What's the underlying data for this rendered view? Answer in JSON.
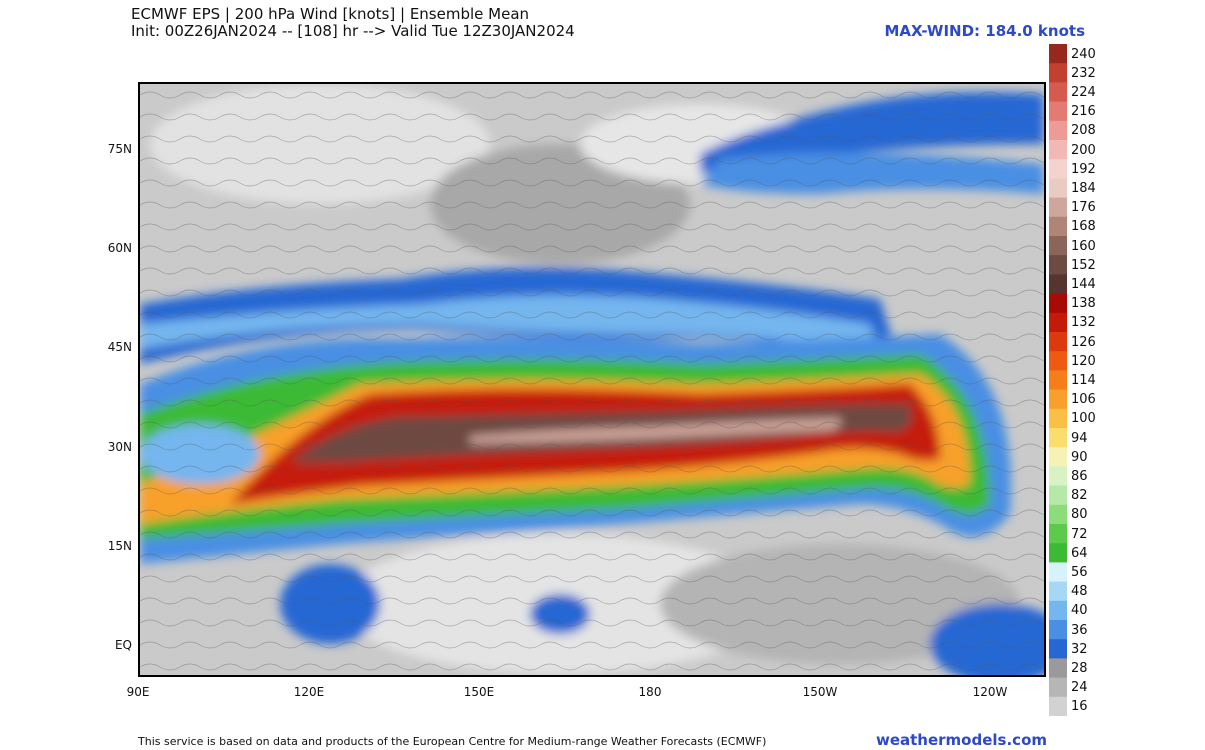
{
  "header": {
    "line1": "ECMWF EPS | 200 hPa Wind [knots] | Ensemble Mean",
    "line2": "Init: 00Z26JAN2024 -- [108] hr --> Valid Tue 12Z30JAN2024",
    "max_wind": "MAX-WIND: 184.0 knots"
  },
  "map": {
    "lat_labels": [
      "75N",
      "60N",
      "45N",
      "30N",
      "15N",
      "EQ"
    ],
    "lon_labels": [
      "90E",
      "120E",
      "150E",
      "180",
      "150W",
      "120W"
    ]
  },
  "colorbar": {
    "levels": [
      "240",
      "232",
      "224",
      "216",
      "208",
      "200",
      "192",
      "184",
      "176",
      "168",
      "160",
      "152",
      "144",
      "138",
      "132",
      "126",
      "120",
      "114",
      "106",
      "100",
      "94",
      "90",
      "86",
      "82",
      "80",
      "72",
      "64",
      "56",
      "48",
      "40",
      "36",
      "32",
      "28",
      "24",
      "16"
    ],
    "colors": [
      "#96281e",
      "#c2402f",
      "#d65b4f",
      "#e47b73",
      "#ec9b96",
      "#f2b8b3",
      "#f6d2cf",
      "#e9cbc4",
      "#cfa69b",
      "#b08578",
      "#8c655a",
      "#6d4a42",
      "#563530",
      "#a80a06",
      "#c61a08",
      "#dc3a0e",
      "#ee5a12",
      "#f57e1a",
      "#f8a02a",
      "#fac046",
      "#fbdd6e",
      "#f6f2b4",
      "#d8f2c4",
      "#b6e8a8",
      "#8ddc7a",
      "#5dca4c",
      "#3dba34",
      "#d6f2fb",
      "#a6d7f5",
      "#74b6ee",
      "#4a8fe3",
      "#2767d3",
      "#9a9a9a",
      "#b6b6b6",
      "#d2d2d2"
    ]
  },
  "footer": {
    "credit": "This service is based on data and products of the European Centre for Medium-range Weather Forecasts (ECMWF)",
    "brand": "weathermodels.com"
  }
}
